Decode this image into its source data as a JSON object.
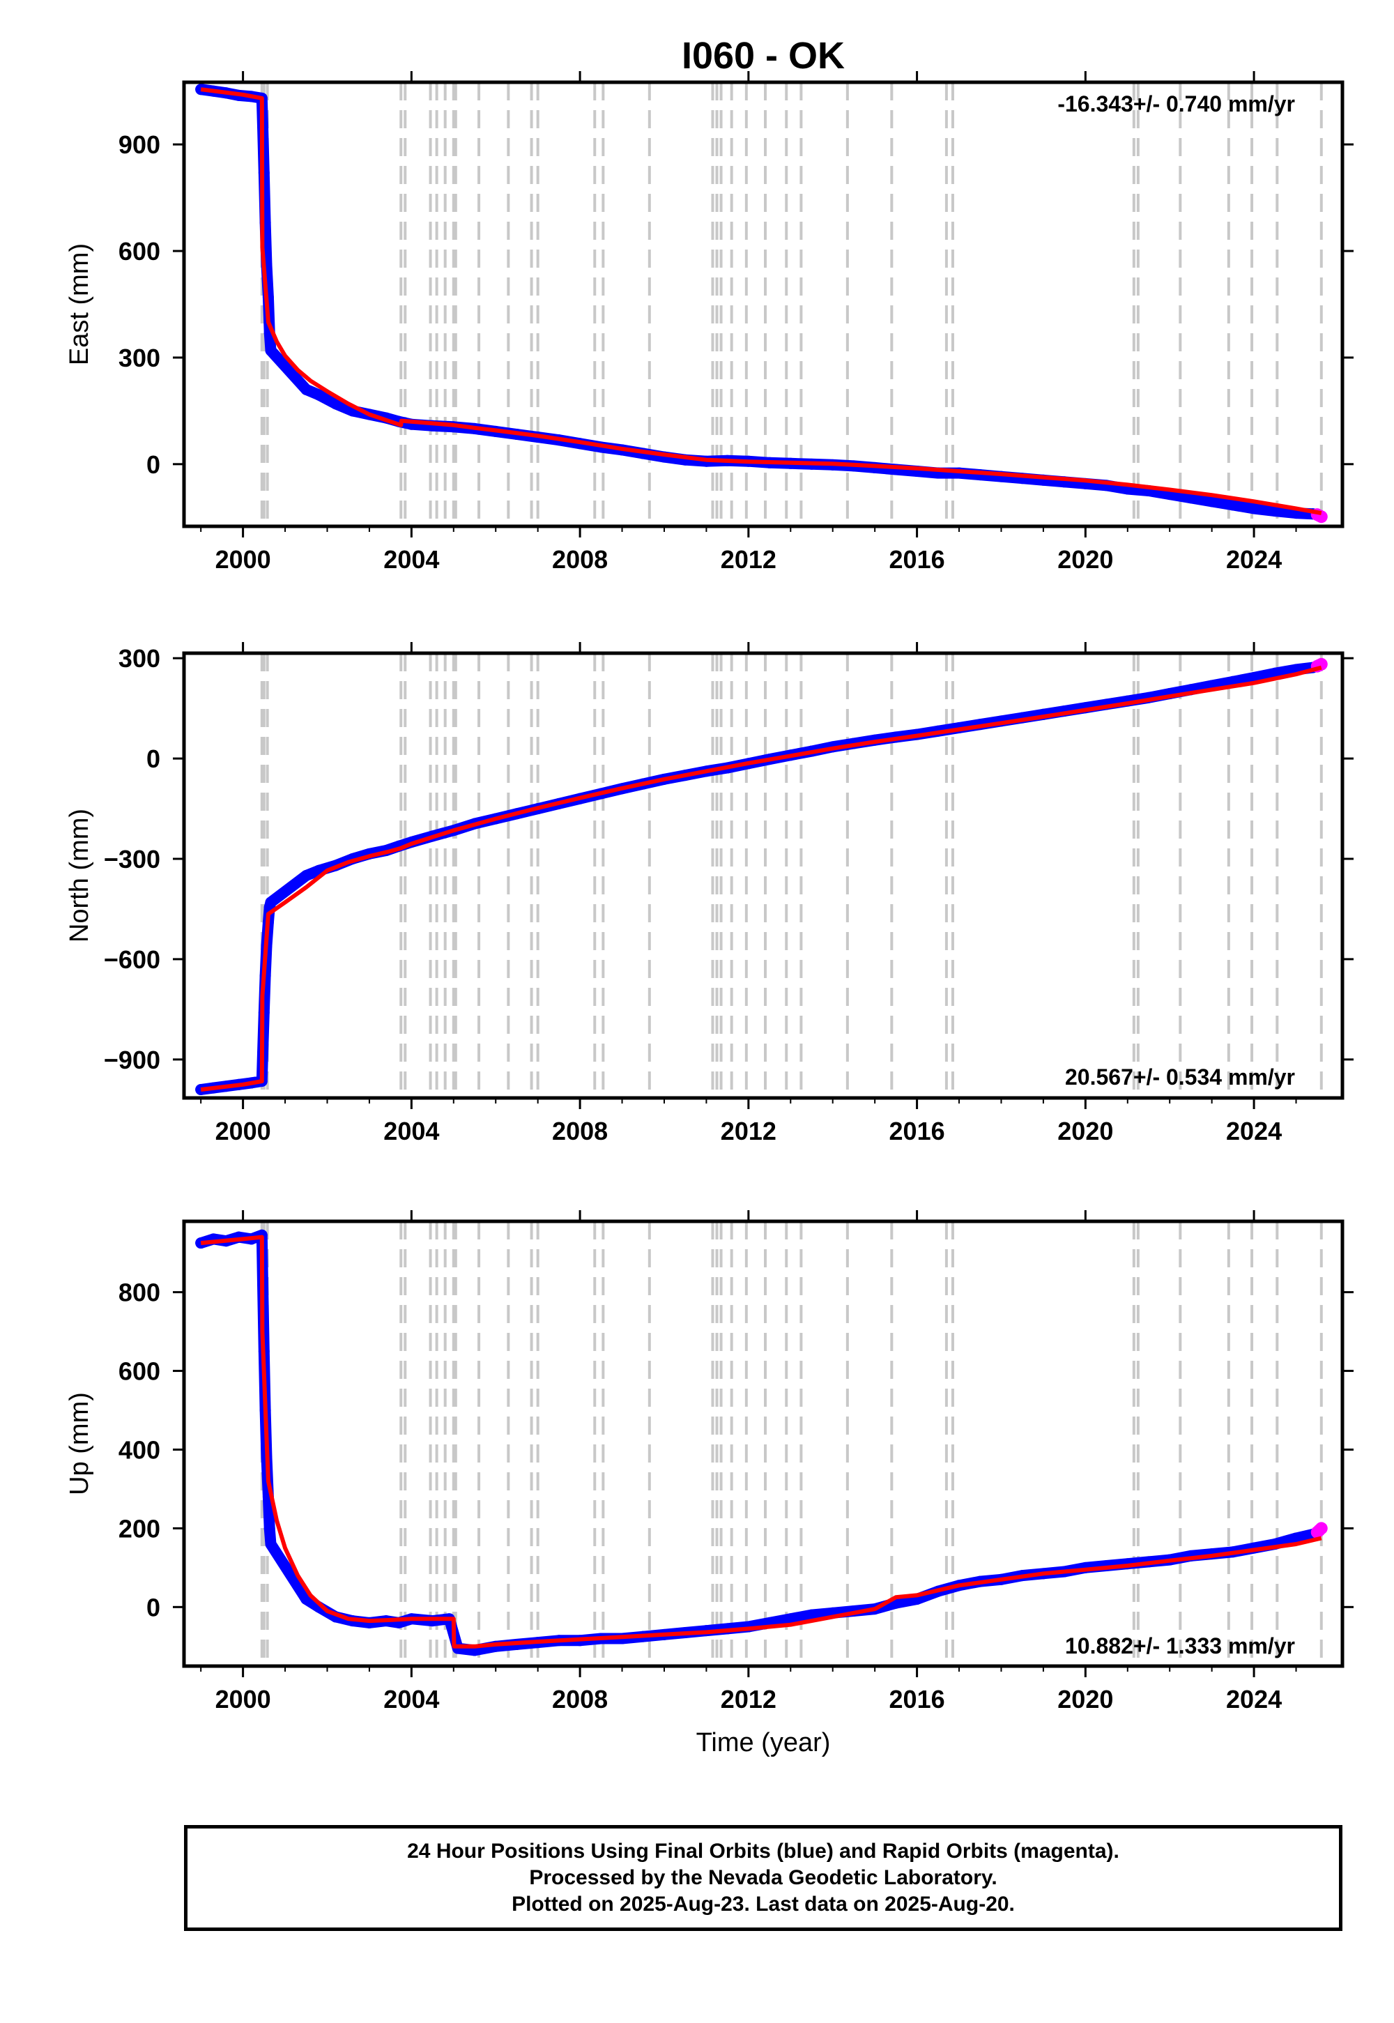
{
  "station_title": "I060 - OK",
  "colors": {
    "final_orbits": "#0000ff",
    "rapid_orbits": "#ff00ff",
    "model_fit": "#ff0000",
    "event_lines": "#c8c8c8",
    "axes": "#000000"
  },
  "footer": {
    "line1": "24 Hour Positions Using Final Orbits (blue) and Rapid Orbits (magenta).",
    "line2": "Processed by the Nevada Geodetic Laboratory.",
    "line3": "Plotted on 2025-Aug-23. Last data on 2025-Aug-20."
  },
  "chart_data": [
    {
      "type": "scatter",
      "ylabel": "East (mm)",
      "xlabel": "",
      "rate_text": "-16.343+/- 0.740 mm/yr",
      "xlim": [
        1998.6,
        2026.1
      ],
      "ylim": [
        -175,
        1075
      ],
      "xticks": [
        2000,
        2004,
        2008,
        2012,
        2016,
        2020,
        2024
      ],
      "yticks": [
        900,
        600,
        300,
        0
      ],
      "ytick_labels": [
        "900",
        "600",
        "300",
        "0"
      ],
      "event_lines_x": [
        2000.45,
        2000.5,
        2000.58,
        2003.75,
        2003.85,
        2004.45,
        2004.6,
        2004.8,
        2005.0,
        2005.05,
        2005.6,
        2006.3,
        2006.85,
        2007.0,
        2008.35,
        2008.55,
        2009.65,
        2011.15,
        2011.25,
        2011.35,
        2011.6,
        2011.95,
        2012.4,
        2012.9,
        2013.25,
        2014.35,
        2015.4,
        2016.7,
        2016.85,
        2021.15,
        2021.25,
        2022.25,
        2023.4,
        2023.95,
        2024.55,
        2025.6
      ],
      "observations": {
        "x": [
          1999.0,
          1999.3,
          1999.6,
          1999.9,
          2000.2,
          2000.45,
          2000.47,
          2000.5,
          2000.53,
          2000.56,
          2000.6,
          2000.63,
          2000.66,
          2001.5,
          2001.8,
          2002.2,
          2002.6,
          2003.0,
          2003.4,
          2003.7,
          2004.0,
          2004.5,
          2005.0,
          2005.5,
          2006.0,
          2006.5,
          2007.0,
          2007.5,
          2008.0,
          2008.5,
          2009.0,
          2009.5,
          2010.0,
          2010.5,
          2011.0,
          2011.5,
          2012.0,
          2012.5,
          2013.0,
          2013.5,
          2014.0,
          2014.5,
          2015.0,
          2015.5,
          2016.0,
          2016.5,
          2017.0,
          2017.5,
          2018.0,
          2018.5,
          2019.0,
          2019.5,
          2020.0,
          2020.5,
          2021.0,
          2021.5,
          2022.0,
          2022.5,
          2023.0,
          2023.5,
          2024.0,
          2024.5,
          2025.0,
          2025.4
        ],
        "y": [
          1055,
          1050,
          1045,
          1038,
          1035,
          1030,
          950,
          820,
          680,
          560,
          470,
          370,
          320,
          210,
          195,
          170,
          150,
          140,
          130,
          120,
          112,
          108,
          105,
          100,
          92,
          84,
          76,
          68,
          58,
          48,
          40,
          30,
          20,
          12,
          8,
          10,
          8,
          4,
          2,
          0,
          -2,
          -5,
          -10,
          -15,
          -20,
          -25,
          -25,
          -30,
          -35,
          -40,
          -45,
          -50,
          -55,
          -60,
          -70,
          -75,
          -85,
          -95,
          -105,
          -115,
          -125,
          -132,
          -138,
          -140
        ]
      },
      "rapid": {
        "x": [
          2025.5,
          2025.55,
          2025.6
        ],
        "y": [
          -142,
          -145,
          -148
        ]
      },
      "model": {
        "x": [
          1999.0,
          2000.0,
          2000.45,
          2000.46,
          2000.6,
          2000.8,
          2001.0,
          2001.3,
          2001.6,
          2002.0,
          2002.5,
          2003.0,
          2003.5,
          2003.75,
          2003.76,
          2004.5,
          2005.0,
          2005.5,
          2006.0,
          2007.0,
          2008.0,
          2009.0,
          2010.0,
          2011.0,
          2012.0,
          2013.0,
          2014.0,
          2015.0,
          2016.0,
          2017.0,
          2018.0,
          2019.0,
          2020.0,
          2021.0,
          2022.0,
          2023.0,
          2024.0,
          2025.0,
          2025.6
        ],
        "y": [
          1055,
          1040,
          1030,
          610,
          400,
          345,
          305,
          265,
          235,
          205,
          170,
          140,
          120,
          110,
          122,
          115,
          110,
          102,
          95,
          80,
          62,
          43,
          27,
          12,
          7,
          4,
          1,
          -5,
          -12,
          -20,
          -28,
          -37,
          -46,
          -58,
          -72,
          -87,
          -105,
          -125,
          -138
        ]
      }
    },
    {
      "type": "scatter",
      "ylabel": "North (mm)",
      "xlabel": "",
      "rate_text": "20.567+/- 0.534 mm/yr",
      "xlim": [
        1998.6,
        2026.1
      ],
      "ylim": [
        -1015,
        315
      ],
      "xticks": [
        2000,
        2004,
        2008,
        2012,
        2016,
        2020,
        2024
      ],
      "yticks": [
        300,
        0,
        -300,
        -600,
        -900
      ],
      "ytick_labels": [
        "300",
        "0",
        "−300",
        "−600",
        "−900"
      ],
      "event_lines_x": [
        2000.45,
        2000.5,
        2000.58,
        2003.75,
        2003.85,
        2004.45,
        2004.6,
        2004.8,
        2005.0,
        2005.05,
        2005.6,
        2006.3,
        2006.85,
        2007.0,
        2008.35,
        2008.55,
        2009.65,
        2011.15,
        2011.25,
        2011.35,
        2011.6,
        2011.95,
        2012.4,
        2012.9,
        2013.25,
        2014.35,
        2015.4,
        2016.7,
        2016.85,
        2021.15,
        2021.25,
        2022.25,
        2023.4,
        2023.95,
        2024.55,
        2025.6
      ],
      "observations": {
        "x": [
          1999.0,
          1999.3,
          1999.6,
          1999.9,
          2000.2,
          2000.45,
          2000.47,
          2000.5,
          2000.53,
          2000.56,
          2000.6,
          2000.63,
          2000.66,
          2001.5,
          2001.8,
          2002.2,
          2002.6,
          2003.0,
          2003.4,
          2003.7,
          2004.0,
          2004.5,
          2005.0,
          2005.5,
          2006.0,
          2006.5,
          2007.0,
          2007.5,
          2008.0,
          2008.5,
          2009.0,
          2009.5,
          2010.0,
          2010.5,
          2011.0,
          2011.5,
          2012.0,
          2012.5,
          2013.0,
          2013.5,
          2014.0,
          2014.5,
          2015.0,
          2015.5,
          2016.0,
          2016.5,
          2017.0,
          2017.5,
          2018.0,
          2018.5,
          2019.0,
          2019.5,
          2020.0,
          2020.5,
          2021.0,
          2021.5,
          2022.0,
          2022.5,
          2023.0,
          2023.5,
          2024.0,
          2024.5,
          2025.0,
          2025.4
        ],
        "y": [
          -990,
          -985,
          -980,
          -975,
          -970,
          -965,
          -880,
          -760,
          -650,
          -560,
          -490,
          -445,
          -430,
          -350,
          -335,
          -320,
          -300,
          -285,
          -275,
          -262,
          -250,
          -232,
          -215,
          -195,
          -180,
          -165,
          -150,
          -135,
          -120,
          -105,
          -90,
          -76,
          -62,
          -50,
          -38,
          -28,
          -15,
          -2,
          10,
          22,
          35,
          45,
          55,
          64,
          72,
          82,
          92,
          102,
          112,
          122,
          132,
          142,
          152,
          162,
          172,
          182,
          194,
          206,
          218,
          230,
          242,
          255,
          266,
          272
        ]
      },
      "rapid": {
        "x": [
          2025.5,
          2025.55,
          2025.6
        ],
        "y": [
          276,
          279,
          282
        ]
      },
      "model": {
        "x": [
          1999.0,
          2000.0,
          2000.45,
          2000.46,
          2000.6,
          2001.0,
          2001.5,
          2002.0,
          2002.5,
          2003.0,
          2003.5,
          2003.75,
          2004.0,
          2005.0,
          2006.0,
          2007.0,
          2008.0,
          2009.0,
          2010.0,
          2011.0,
          2012.0,
          2013.0,
          2014.0,
          2015.0,
          2016.0,
          2017.0,
          2018.0,
          2019.0,
          2020.0,
          2021.0,
          2022.0,
          2023.0,
          2024.0,
          2025.0,
          2025.6
        ],
        "y": [
          -990,
          -975,
          -965,
          -710,
          -465,
          -430,
          -385,
          -335,
          -310,
          -292,
          -277,
          -268,
          -255,
          -215,
          -180,
          -148,
          -118,
          -89,
          -62,
          -38,
          -14,
          8,
          30,
          50,
          68,
          87,
          106,
          125,
          145,
          165,
          186,
          206,
          226,
          252,
          272
        ]
      }
    },
    {
      "type": "scatter",
      "ylabel": "Up (mm)",
      "xlabel": "Time (year)",
      "rate_text": "10.882+/- 1.333 mm/yr",
      "xlim": [
        1998.6,
        2026.1
      ],
      "ylim": [
        -150,
        980
      ],
      "xticks": [
        2000,
        2004,
        2008,
        2012,
        2016,
        2020,
        2024
      ],
      "yticks": [
        800,
        600,
        400,
        200,
        0
      ],
      "ytick_labels": [
        "800",
        "600",
        "400",
        "200",
        "0"
      ],
      "event_lines_x": [
        2000.45,
        2000.5,
        2000.58,
        2003.75,
        2003.85,
        2004.45,
        2004.6,
        2004.8,
        2005.0,
        2005.05,
        2005.6,
        2006.3,
        2006.85,
        2007.0,
        2008.35,
        2008.55,
        2009.65,
        2011.15,
        2011.25,
        2011.35,
        2011.6,
        2011.95,
        2012.4,
        2012.9,
        2013.25,
        2014.35,
        2015.4,
        2016.7,
        2016.85,
        2021.15,
        2021.25,
        2022.25,
        2023.4,
        2023.95,
        2024.55,
        2025.6
      ],
      "observations": {
        "x": [
          1999.0,
          1999.3,
          1999.6,
          1999.9,
          2000.2,
          2000.45,
          2000.47,
          2000.5,
          2000.53,
          2000.56,
          2000.6,
          2000.63,
          2000.66,
          2001.5,
          2001.8,
          2002.2,
          2002.6,
          2003.0,
          2003.4,
          2003.7,
          2004.0,
          2004.5,
          2004.9,
          2005.1,
          2005.5,
          2006.0,
          2006.5,
          2007.0,
          2007.5,
          2008.0,
          2008.5,
          2009.0,
          2009.5,
          2010.0,
          2010.5,
          2011.0,
          2011.5,
          2012.0,
          2012.5,
          2013.0,
          2013.5,
          2014.0,
          2014.5,
          2015.0,
          2015.5,
          2016.0,
          2016.5,
          2017.0,
          2017.5,
          2018.0,
          2018.5,
          2019.0,
          2019.5,
          2020.0,
          2020.5,
          2021.0,
          2021.5,
          2022.0,
          2022.5,
          2023.0,
          2023.5,
          2024.0,
          2024.5,
          2025.0,
          2025.4
        ],
        "y": [
          925,
          935,
          930,
          940,
          935,
          945,
          820,
          650,
          500,
          380,
          280,
          200,
          160,
          20,
          0,
          -25,
          -35,
          -40,
          -35,
          -40,
          -30,
          -35,
          -30,
          -105,
          -110,
          -100,
          -95,
          -90,
          -85,
          -85,
          -80,
          -80,
          -75,
          -70,
          -65,
          -60,
          -55,
          -50,
          -40,
          -30,
          -20,
          -15,
          -10,
          -5,
          10,
          20,
          40,
          55,
          65,
          70,
          80,
          85,
          90,
          100,
          105,
          110,
          115,
          120,
          130,
          135,
          140,
          150,
          160,
          175,
          185
        ]
      },
      "rapid": {
        "x": [
          2025.5,
          2025.55,
          2025.6
        ],
        "y": [
          190,
          195,
          200
        ]
      },
      "model": {
        "x": [
          1999.0,
          2000.0,
          2000.45,
          2000.46,
          2000.6,
          2000.8,
          2001.0,
          2001.3,
          2001.6,
          2002.0,
          2002.5,
          2003.0,
          2003.5,
          2004.0,
          2004.5,
          2005.0,
          2005.01,
          2005.5,
          2006.0,
          2007.0,
          2008.0,
          2009.0,
          2010.0,
          2011.0,
          2012.0,
          2013.0,
          2014.0,
          2015.0,
          2015.5,
          2016.0,
          2017.0,
          2018.0,
          2019.0,
          2020.0,
          2021.0,
          2022.0,
          2023.0,
          2024.0,
          2025.0,
          2025.6
        ],
        "y": [
          925,
          935,
          940,
          700,
          320,
          220,
          150,
          80,
          30,
          -10,
          -30,
          -35,
          -33,
          -30,
          -30,
          -30,
          -100,
          -100,
          -95,
          -88,
          -82,
          -76,
          -70,
          -64,
          -55,
          -45,
          -25,
          -5,
          25,
          30,
          55,
          70,
          85,
          95,
          105,
          118,
          130,
          145,
          160,
          175
        ]
      }
    }
  ]
}
